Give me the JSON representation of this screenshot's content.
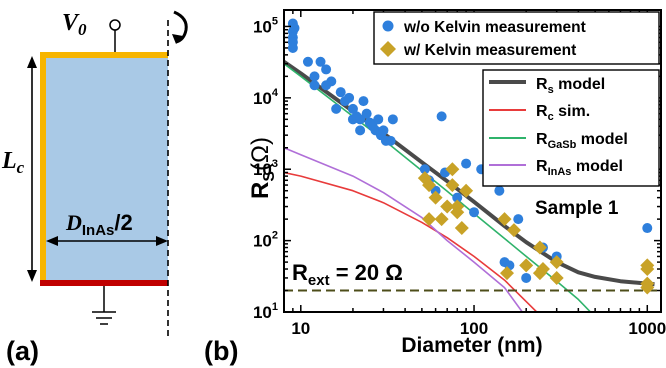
{
  "panel_a": {
    "tag": "(a)",
    "v0": "V",
    "v0_sub": "0",
    "lc": "L",
    "lc_sub": "c",
    "d": "D",
    "d_sub": "InAs",
    "d_suffix": "/2",
    "colors": {
      "body": "#a9c9e6",
      "contact_top": "#f7b500",
      "contact_bottom": "#c00000"
    }
  },
  "panel_b": {
    "tag": "(b)"
  },
  "chart_data": {
    "type": "scatter",
    "xscale": "log",
    "yscale": "log",
    "xlim": [
      8,
      1200
    ],
    "ylim": [
      10,
      170000
    ],
    "xlabel": "Diameter (nm)",
    "ylabel_main": "R",
    "ylabel_sub": "S",
    "ylabel_unit": "(Ω)",
    "xticks": [
      {
        "v": 10,
        "label": "10"
      },
      {
        "v": 100,
        "label": "100"
      },
      {
        "v": 1000,
        "label": "1000"
      }
    ],
    "yticks": [
      {
        "v": 10,
        "base": "10",
        "exp": "1"
      },
      {
        "v": 100,
        "base": "10",
        "exp": "2"
      },
      {
        "v": 1000,
        "base": "10",
        "exp": "3"
      },
      {
        "v": 10000,
        "base": "10",
        "exp": "4"
      },
      {
        "v": 100000,
        "base": "10",
        "exp": "5"
      }
    ],
    "annotation": "Sample 1",
    "ref_line": {
      "y": 20,
      "label_main": "R",
      "label_sub": "ext",
      "label_rest": " = 20 Ω",
      "color": "#4d4d1a"
    },
    "legend_markers": [
      {
        "name": "w/o Kelvin measurement",
        "marker": "circle",
        "color": "#2e7fdc"
      },
      {
        "name": "w/ Kelvin measurement",
        "marker": "diamond",
        "color": "#c8a227"
      }
    ],
    "legend_lines": [
      {
        "main": "R",
        "sub": "s",
        "rest": " model",
        "color": "#4a4a4a"
      },
      {
        "main": "R",
        "sub": "c",
        "rest": " sim.",
        "color": "#e83b3b"
      },
      {
        "main": "R",
        "sub": "GaSb",
        "rest": " model",
        "color": "#2fb36b"
      },
      {
        "main": "R",
        "sub": "InAs",
        "rest": " model",
        "color": "#b06fd8"
      }
    ],
    "series": [
      {
        "name": "w/o Kelvin measurement",
        "marker": "circle",
        "color": "#2e7fdc",
        "points": [
          [
            9,
            110000
          ],
          [
            9,
            85000
          ],
          [
            9,
            70000
          ],
          [
            9,
            60000
          ],
          [
            9,
            50000
          ],
          [
            9.2,
            95000
          ],
          [
            11,
            32000
          ],
          [
            12,
            20000
          ],
          [
            12,
            15000
          ],
          [
            13,
            32000
          ],
          [
            14,
            25000
          ],
          [
            14,
            15000
          ],
          [
            15,
            17000
          ],
          [
            16,
            7000
          ],
          [
            17,
            12000
          ],
          [
            18,
            9000
          ],
          [
            19,
            10000
          ],
          [
            20,
            7000
          ],
          [
            20,
            5000
          ],
          [
            21,
            5500
          ],
          [
            22,
            5000
          ],
          [
            22,
            3500
          ],
          [
            23,
            9000
          ],
          [
            24,
            6000
          ],
          [
            25,
            4500
          ],
          [
            26,
            4000
          ],
          [
            27,
            3500
          ],
          [
            28,
            5000
          ],
          [
            29,
            3000
          ],
          [
            30,
            3500
          ],
          [
            31,
            2500
          ],
          [
            33,
            2500
          ],
          [
            34,
            5000
          ],
          [
            52,
            1000
          ],
          [
            55,
            700
          ],
          [
            60,
            500
          ],
          [
            65,
            5500
          ],
          [
            68,
            900
          ],
          [
            70,
            300
          ],
          [
            80,
            400
          ],
          [
            90,
            1200
          ],
          [
            100,
            250
          ],
          [
            110,
            1000
          ],
          [
            140,
            500
          ],
          [
            150,
            50
          ],
          [
            160,
            45
          ],
          [
            180,
            200
          ],
          [
            200,
            30
          ],
          [
            250,
            80
          ],
          [
            300,
            60
          ],
          [
            1000,
            150
          ]
        ]
      },
      {
        "name": "w/ Kelvin measurement",
        "marker": "diamond",
        "color": "#c8a227",
        "points": [
          [
            52,
            750
          ],
          [
            55,
            600
          ],
          [
            55,
            200
          ],
          [
            60,
            400
          ],
          [
            65,
            200
          ],
          [
            70,
            300
          ],
          [
            75,
            1000
          ],
          [
            75,
            600
          ],
          [
            80,
            250
          ],
          [
            80,
            300
          ],
          [
            85,
            150
          ],
          [
            90,
            500
          ],
          [
            150,
            200
          ],
          [
            155,
            35
          ],
          [
            170,
            140
          ],
          [
            200,
            45
          ],
          [
            240,
            80
          ],
          [
            240,
            35
          ],
          [
            250,
            40
          ],
          [
            300,
            30
          ],
          [
            300,
            50
          ],
          [
            1000,
            45
          ],
          [
            1000,
            40
          ],
          [
            1000,
            22
          ],
          [
            1000,
            25
          ]
        ]
      }
    ],
    "curves": [
      {
        "name": "Rs model",
        "color": "#4a4a4a",
        "width": 4,
        "points": [
          [
            8,
            32000
          ],
          [
            10,
            22000
          ],
          [
            20,
            6500
          ],
          [
            30,
            3200
          ],
          [
            50,
            1250
          ],
          [
            70,
            680
          ],
          [
            100,
            350
          ],
          [
            150,
            160
          ],
          [
            200,
            95
          ],
          [
            300,
            50
          ],
          [
            400,
            36
          ],
          [
            500,
            31
          ],
          [
            700,
            27
          ],
          [
            1000,
            25
          ],
          [
            1100,
            24.5
          ]
        ]
      },
      {
        "name": "Rc sim.",
        "color": "#e83b3b",
        "width": 1.6,
        "points": [
          [
            8,
            900
          ],
          [
            10,
            800
          ],
          [
            20,
            500
          ],
          [
            30,
            340
          ],
          [
            50,
            180
          ],
          [
            70,
            110
          ],
          [
            100,
            60
          ],
          [
            150,
            28
          ],
          [
            200,
            14
          ],
          [
            230,
            10
          ]
        ]
      },
      {
        "name": "RGaSb model",
        "color": "#2fb36b",
        "width": 1.6,
        "points": [
          [
            8,
            30000
          ],
          [
            10,
            20000
          ],
          [
            20,
            5500
          ],
          [
            30,
            2600
          ],
          [
            50,
            950
          ],
          [
            70,
            490
          ],
          [
            100,
            240
          ],
          [
            150,
            107
          ],
          [
            200,
            60
          ],
          [
            300,
            27
          ],
          [
            400,
            15
          ],
          [
            470,
            10
          ]
        ]
      },
      {
        "name": "RInAs model",
        "color": "#b06fd8",
        "width": 1.6,
        "points": [
          [
            8,
            2000
          ],
          [
            10,
            1600
          ],
          [
            20,
            800
          ],
          [
            30,
            470
          ],
          [
            50,
            210
          ],
          [
            70,
            100
          ],
          [
            100,
            50
          ],
          [
            150,
            22
          ],
          [
            190,
            10
          ]
        ]
      }
    ]
  }
}
